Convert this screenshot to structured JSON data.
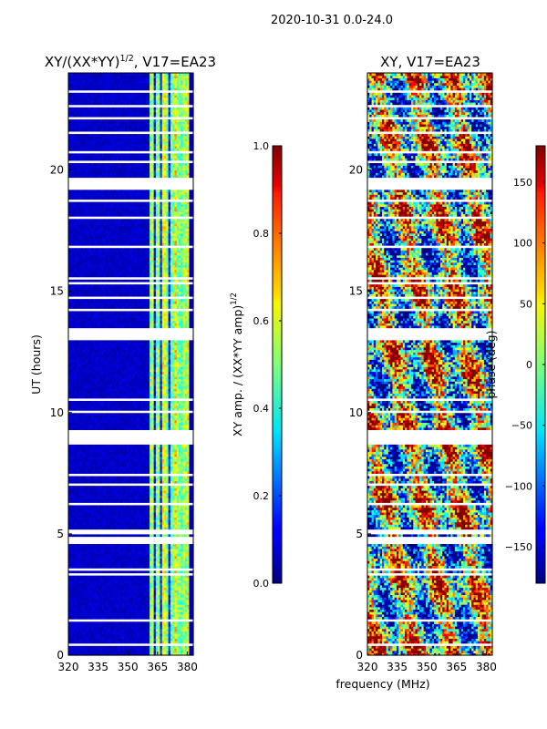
{
  "chart_data": {
    "suptitle": "2020-10-31 0.0-24.0",
    "shared_xlabel": "frequency (MHz)",
    "panels": [
      {
        "id": "left",
        "type": "heatmap",
        "title_base": "XY/(XX*YY)",
        "title_sup": "1/2",
        "title_suffix": ", V17=EA23",
        "ylabel": "UT (hours)",
        "xlim": [
          320,
          383
        ],
        "ylim": [
          0,
          24
        ],
        "xticks": [
          "320",
          "335",
          "350",
          "365",
          "380"
        ],
        "xtick_values": [
          320,
          335,
          350,
          365,
          380
        ],
        "yticks": [
          "0",
          "5",
          "10",
          "15",
          "20"
        ],
        "ytick_values": [
          0,
          5,
          10,
          15,
          20
        ],
        "colormap": "jet",
        "colorbar": {
          "label_base": "XY amp. / (XX*YY amp)",
          "label_sup": "1/2",
          "range": [
            0.0,
            1.0
          ],
          "ticks": [
            "0.0",
            "0.2",
            "0.4",
            "0.6",
            "0.8",
            "1.0"
          ],
          "tick_values": [
            0.0,
            0.2,
            0.4,
            0.6,
            0.8,
            1.0
          ]
        },
        "description": "near-zero amplitude (dark blue) for most of the band; elevated amplitude roughly between 361 and 381 MHz"
      },
      {
        "id": "right",
        "type": "heatmap",
        "title_base": "XY, V17=EA23",
        "xlim": [
          320,
          383
        ],
        "ylim": [
          0,
          24
        ],
        "xticks": [
          "320",
          "335",
          "350",
          "365",
          "380"
        ],
        "xtick_values": [
          320,
          335,
          350,
          365,
          380
        ],
        "yticks": [
          "0",
          "5",
          "10",
          "15",
          "20"
        ],
        "ytick_values": [
          0,
          5,
          10,
          15,
          20
        ],
        "colormap": "jet",
        "colorbar": {
          "label_base": "phase (deg)",
          "range": [
            -180,
            180
          ],
          "ticks": [
            "−150",
            "−100",
            "−50",
            "0",
            "50",
            "100",
            "150"
          ],
          "tick_values": [
            -150,
            -100,
            -50,
            0,
            50,
            100,
            150
          ]
        },
        "description": "noisy phase across full band"
      }
    ],
    "flagged_ut_bands_hours": [
      [
        13.0,
        13.5
      ],
      [
        9.05,
        9.3
      ],
      [
        8.75,
        8.95
      ],
      [
        5.05,
        5.2
      ],
      [
        4.65,
        4.9
      ],
      [
        19.25,
        19.55
      ],
      [
        19.6,
        19.7
      ],
      [
        21.5,
        21.6
      ],
      [
        1.45,
        1.52
      ],
      [
        0.4,
        0.47
      ],
      [
        2.95,
        3.02
      ],
      [
        3.3,
        3.36
      ],
      [
        3.55,
        3.6
      ],
      [
        6.25,
        6.3
      ],
      [
        7.05,
        7.1
      ],
      [
        7.45,
        7.5
      ],
      [
        10.05,
        10.1
      ],
      [
        10.55,
        10.6
      ],
      [
        11.4,
        11.45
      ],
      [
        12.15,
        12.2
      ],
      [
        14.2,
        14.25
      ],
      [
        14.7,
        14.75
      ],
      [
        15.3,
        15.35
      ],
      [
        15.55,
        15.6
      ],
      [
        16.05,
        16.1
      ],
      [
        16.8,
        16.85
      ],
      [
        17.6,
        17.65
      ],
      [
        18.05,
        18.1
      ],
      [
        18.4,
        18.45
      ],
      [
        18.75,
        18.8
      ],
      [
        20.3,
        20.35
      ],
      [
        20.75,
        20.8
      ],
      [
        22.15,
        22.2
      ],
      [
        22.6,
        22.65
      ],
      [
        23.2,
        23.25
      ]
    ]
  }
}
